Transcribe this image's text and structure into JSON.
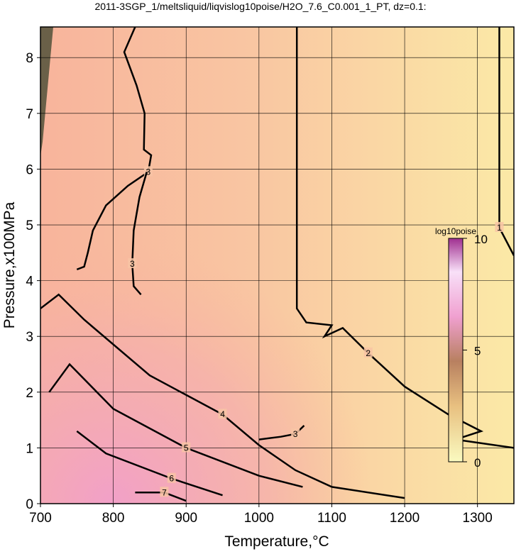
{
  "chart_data": {
    "type": "contour",
    "title": "2011-3SGP_1/meltsliquid/liqvislog10poise/H2O_7.6_C0.001_1_PT, dz=0.1:",
    "xlabel": "Temperature,°C",
    "ylabel": "Pressure,x100MPa",
    "xlim": [
      700,
      1350
    ],
    "ylim": [
      0,
      8.55
    ],
    "xticks": [
      700,
      800,
      900,
      1000,
      1100,
      1200,
      1300
    ],
    "yticks": [
      0,
      1,
      2,
      3,
      4,
      5,
      6,
      7,
      8
    ],
    "grid": true,
    "color": "#000000",
    "contours": [
      {
        "level": 1,
        "x": [
          1330,
          1330,
          1350
        ],
        "y": [
          8.55,
          4.95,
          4.45
        ]
      },
      {
        "level": 2,
        "x": [
          1052,
          1052,
          1065,
          1100,
          1090,
          1115,
          1150,
          1200,
          1260,
          1305,
          1270,
          1350
        ],
        "y": [
          8.55,
          3.5,
          3.25,
          3.2,
          3.0,
          3.15,
          2.7,
          2.1,
          1.6,
          1.3,
          1.15,
          1.0
        ]
      },
      {
        "level": 3,
        "x": [
          830,
          815,
          832,
          843,
          842,
          852,
          848,
          820,
          790,
          772,
          765,
          760,
          750
        ],
        "y": [
          8.55,
          8.1,
          7.5,
          7.0,
          6.35,
          6.25,
          5.95,
          5.7,
          5.35,
          4.9,
          4.5,
          4.25,
          4.2
        ]
      },
      {
        "level": 3,
        "x": [
          846,
          836,
          828,
          826,
          828,
          838
        ],
        "y": [
          5.95,
          5.5,
          4.9,
          4.3,
          3.9,
          3.75
        ]
      },
      {
        "level": 3,
        "x": [
          1000,
          1030,
          1050,
          1062
        ],
        "y": [
          1.15,
          1.2,
          1.25,
          1.4
        ]
      },
      {
        "level": 4,
        "x": [
          700,
          725,
          760,
          850,
          950,
          1000,
          1050,
          1100,
          1200
        ],
        "y": [
          3.5,
          3.75,
          3.3,
          2.3,
          1.6,
          1.05,
          0.6,
          0.3,
          0.1
        ]
      },
      {
        "level": 5,
        "x": [
          712,
          740,
          800,
          900,
          1000,
          1060
        ],
        "y": [
          2.0,
          2.5,
          1.7,
          1.0,
          0.5,
          0.3
        ]
      },
      {
        "level": 6,
        "x": [
          750,
          790,
          880,
          950
        ],
        "y": [
          1.3,
          0.9,
          0.45,
          0.15
        ]
      },
      {
        "level": 7,
        "x": [
          830,
          870,
          900
        ],
        "y": [
          0.2,
          0.2,
          0.05
        ]
      }
    ],
    "colorbar": {
      "label": "log10poise",
      "lim": [
        0,
        10
      ],
      "ticks": [
        0,
        5,
        10
      ]
    }
  }
}
